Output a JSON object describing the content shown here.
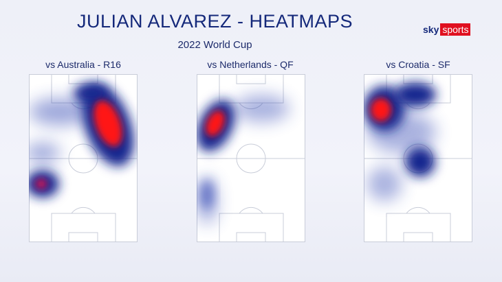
{
  "header": {
    "title": "JULIAN ALVAREZ - HEATMAPS",
    "subtitle": "2022 World Cup"
  },
  "logo": {
    "sky": "sky",
    "sports": "sports",
    "brand_color": "#e01020"
  },
  "matches": [
    {
      "label": "vs Australia - R16"
    },
    {
      "label": "vs Netherlands - QF"
    },
    {
      "label": "vs Croatia - SF"
    }
  ],
  "colors": {
    "heat_low": "#1a2a9a",
    "heat_high": "#ff1010",
    "pitch_lines": "#c8ccd8"
  }
}
